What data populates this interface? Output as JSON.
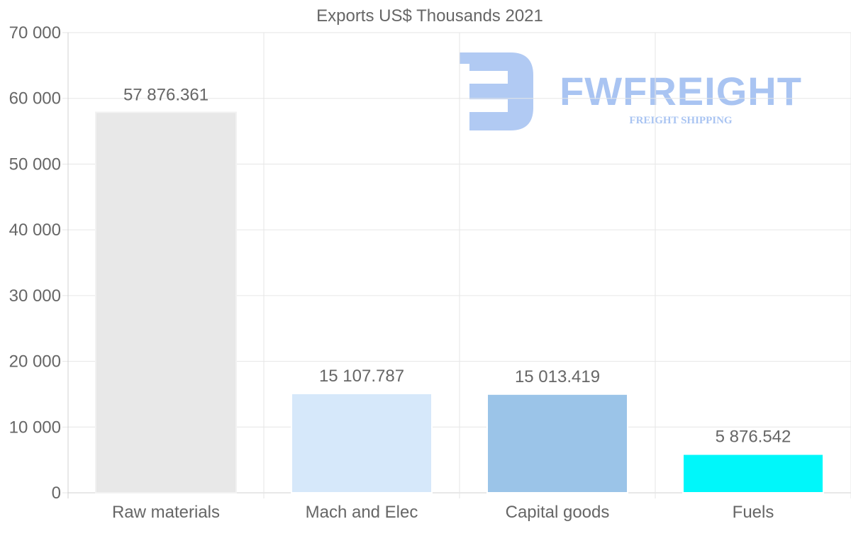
{
  "chart_data": {
    "type": "bar",
    "title": "Exports US$ Thousands 2021",
    "xlabel": "",
    "ylabel": "",
    "categories": [
      "Raw materials",
      "Mach and Elec",
      "Capital goods",
      "Fuels"
    ],
    "values": [
      57876.361,
      15107.787,
      15013.419,
      5876.542
    ],
    "value_labels": [
      "57 876.361",
      "15 107.787",
      "15 013.419",
      "5 876.542"
    ],
    "bar_colors": [
      "#e8e8e8",
      "#d6e8fa",
      "#9bc4e8",
      "#00f7fa"
    ],
    "ylim": [
      0,
      70000
    ],
    "yticks": [
      0,
      10000,
      20000,
      30000,
      40000,
      50000,
      60000,
      70000
    ],
    "ytick_labels": [
      "0",
      "10 000",
      "20 000",
      "30 000",
      "40 000",
      "50 000",
      "60 000",
      "70 000"
    ],
    "grid": true,
    "legend": "none"
  },
  "watermark": {
    "brand": "FWFREIGHT",
    "tagline": "FREIGHT SHIPPING",
    "color": "#a9c4f2"
  },
  "colors": {
    "text": "#666666",
    "grid": "#e6e6e6",
    "axis": "#d0d0d0"
  }
}
